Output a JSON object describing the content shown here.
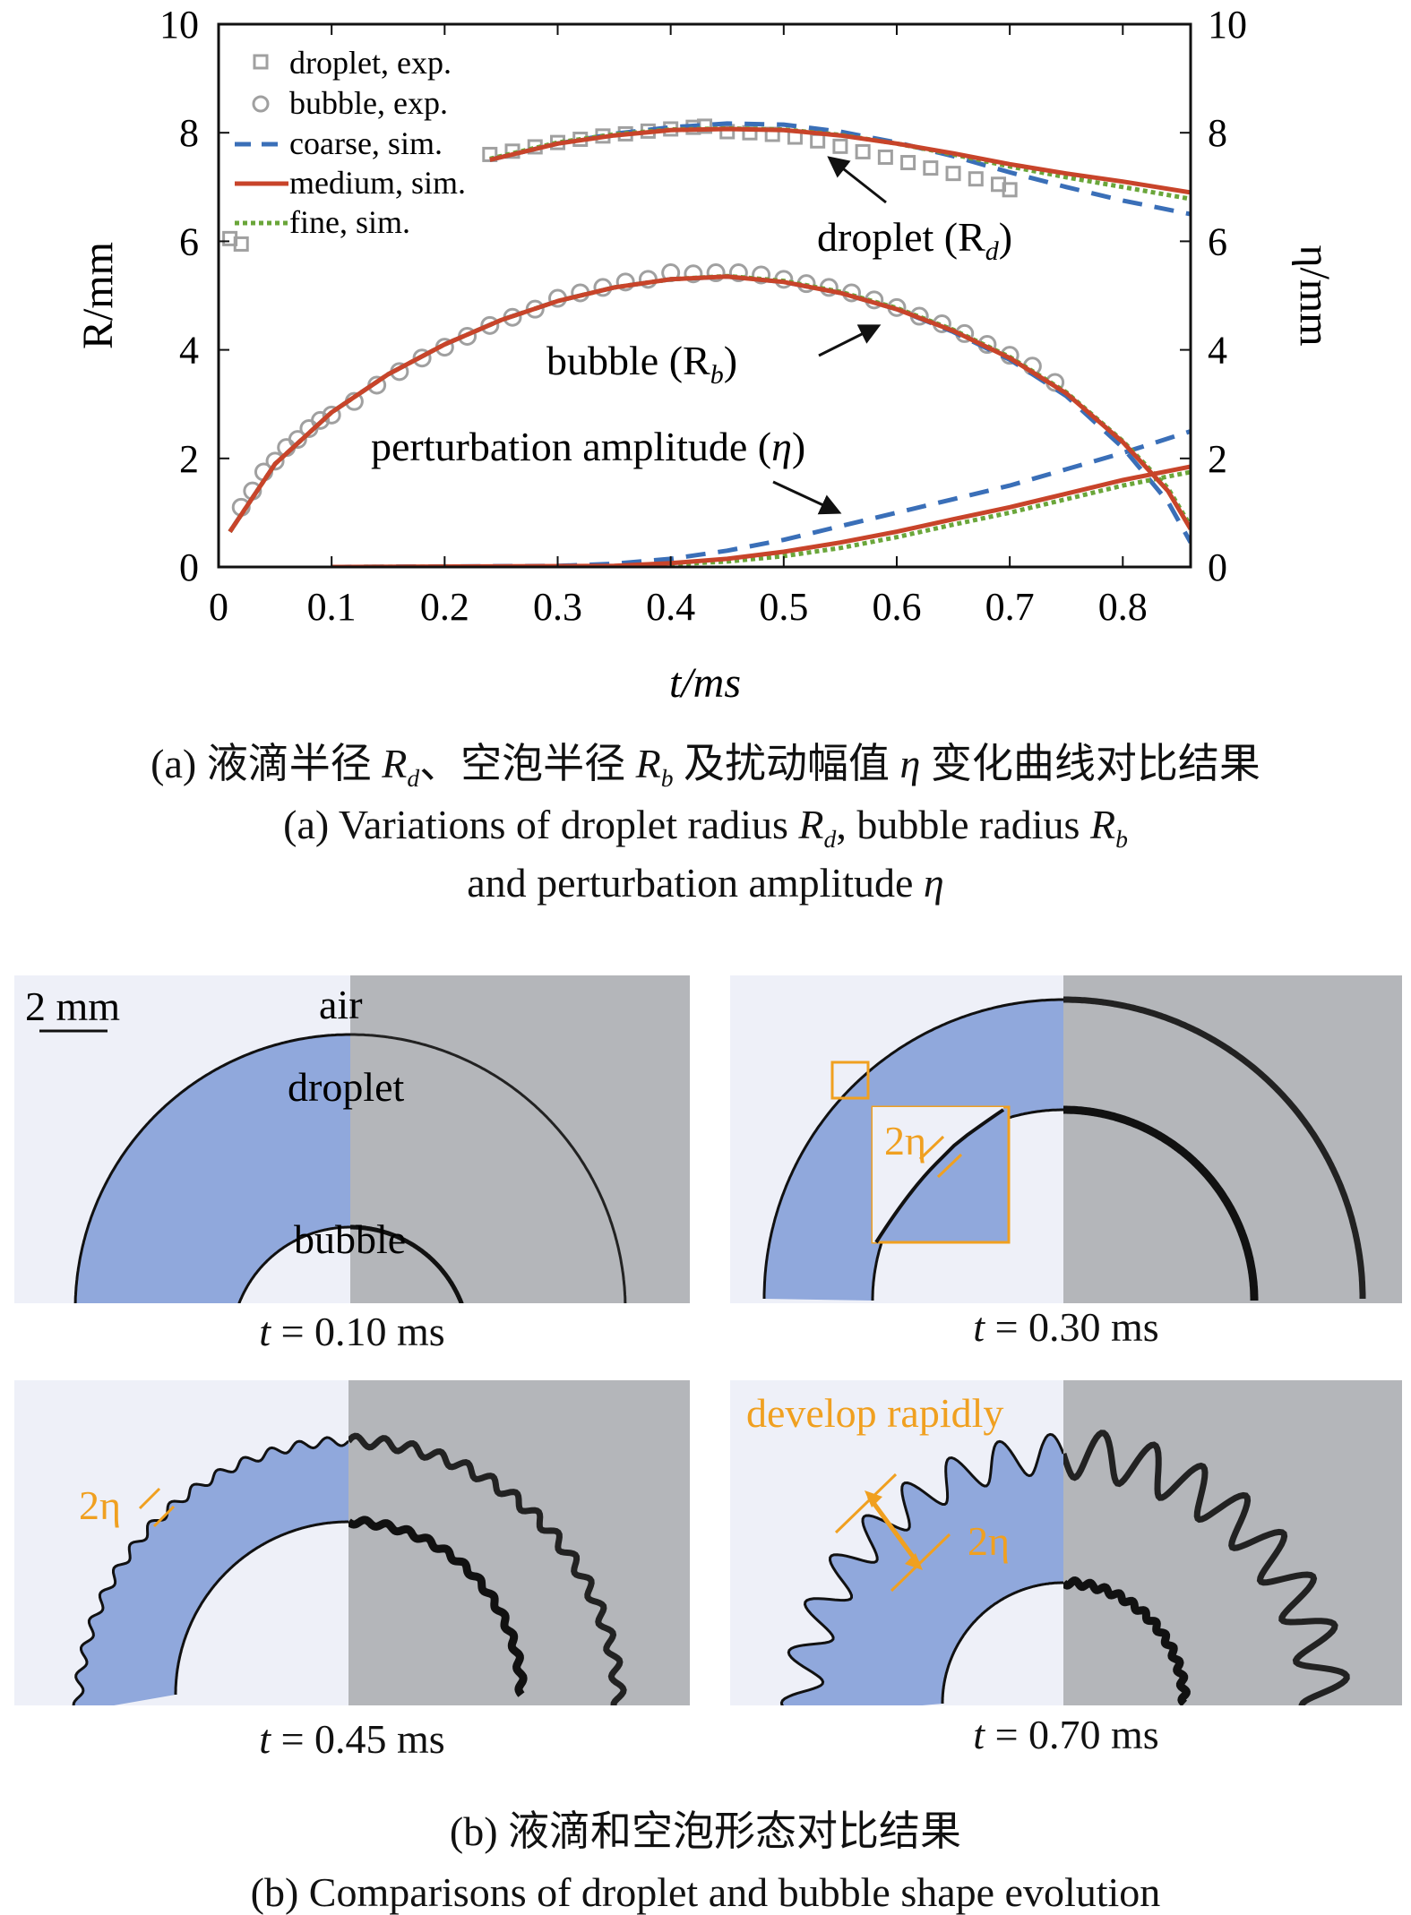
{
  "chart_data": {
    "type": "line",
    "xlabel": "t/ms",
    "ylabel": "R/mm",
    "y2label": "η/mm",
    "xlim": [
      0,
      0.86
    ],
    "ylim": [
      0,
      10
    ],
    "y2lim": [
      0,
      10
    ],
    "xticks": [
      "0",
      "0.1",
      "0.2",
      "0.3",
      "0.4",
      "0.5",
      "0.6",
      "0.7",
      "0.8"
    ],
    "yticks": [
      "0",
      "2",
      "4",
      "6",
      "8",
      "10"
    ],
    "grid": false,
    "legend_position": "top-left",
    "legend": [
      {
        "label": "droplet, exp.",
        "marker": "square",
        "color": "#a0a0a0"
      },
      {
        "label": "bubble, exp.",
        "marker": "circle",
        "color": "#a0a0a0"
      },
      {
        "label": "coarse, sim.",
        "line": "dashed",
        "color": "#3a6fb8"
      },
      {
        "label": "medium, sim.",
        "line": "solid",
        "color": "#c8442a"
      },
      {
        "label": "fine, sim.",
        "line": "dotted",
        "color": "#6aa63a"
      }
    ],
    "annotations": {
      "droplet": "droplet (R",
      "droplet_sub": "d",
      "bubble": "bubble (R",
      "bubble_sub": "b",
      "perturbation": "perturbation amplitude (",
      "eta": "η",
      "close": ")"
    },
    "series": [
      {
        "name": "droplet, exp.",
        "kind": "marker-square",
        "x": [
          0.01,
          0.02,
          0.24,
          0.26,
          0.28,
          0.3,
          0.32,
          0.34,
          0.36,
          0.38,
          0.4,
          0.42,
          0.43,
          0.45,
          0.47,
          0.49,
          0.51,
          0.53,
          0.55,
          0.57,
          0.59,
          0.61,
          0.63,
          0.65,
          0.67,
          0.69,
          0.7
        ],
        "y": [
          6.05,
          5.95,
          7.6,
          7.66,
          7.74,
          7.82,
          7.88,
          7.94,
          7.98,
          8.03,
          8.07,
          8.1,
          8.12,
          8.02,
          8.0,
          7.97,
          7.92,
          7.85,
          7.75,
          7.65,
          7.55,
          7.45,
          7.35,
          7.25,
          7.15,
          7.05,
          6.95
        ]
      },
      {
        "name": "bubble, exp.",
        "kind": "marker-circle",
        "x": [
          0.02,
          0.03,
          0.04,
          0.05,
          0.06,
          0.07,
          0.08,
          0.09,
          0.1,
          0.12,
          0.14,
          0.16,
          0.18,
          0.2,
          0.22,
          0.24,
          0.26,
          0.28,
          0.3,
          0.32,
          0.34,
          0.36,
          0.38,
          0.4,
          0.42,
          0.44,
          0.46,
          0.48,
          0.5,
          0.52,
          0.54,
          0.56,
          0.58,
          0.6,
          0.62,
          0.64,
          0.66,
          0.68,
          0.7,
          0.72,
          0.74
        ],
        "y": [
          1.1,
          1.4,
          1.75,
          1.95,
          2.2,
          2.35,
          2.55,
          2.7,
          2.8,
          3.05,
          3.35,
          3.6,
          3.85,
          4.05,
          4.25,
          4.45,
          4.6,
          4.75,
          4.95,
          5.05,
          5.15,
          5.25,
          5.3,
          5.42,
          5.4,
          5.42,
          5.42,
          5.38,
          5.3,
          5.22,
          5.15,
          5.05,
          4.92,
          4.78,
          4.62,
          4.48,
          4.3,
          4.1,
          3.9,
          3.7,
          3.4
        ]
      },
      {
        "name": "coarse, sim.",
        "group": "droplet",
        "x": [
          0.24,
          0.3,
          0.35,
          0.4,
          0.45,
          0.5,
          0.55,
          0.6,
          0.65,
          0.7,
          0.75,
          0.8,
          0.86
        ],
        "y": [
          7.5,
          7.8,
          7.98,
          8.1,
          8.17,
          8.15,
          8.02,
          7.82,
          7.57,
          7.27,
          7.0,
          6.75,
          6.5
        ]
      },
      {
        "name": "medium, sim.",
        "group": "droplet",
        "x": [
          0.24,
          0.3,
          0.35,
          0.4,
          0.45,
          0.5,
          0.55,
          0.6,
          0.65,
          0.7,
          0.75,
          0.8,
          0.86
        ],
        "y": [
          7.5,
          7.8,
          7.95,
          8.05,
          8.07,
          8.05,
          7.95,
          7.8,
          7.62,
          7.42,
          7.25,
          7.1,
          6.9
        ]
      },
      {
        "name": "fine, sim.",
        "group": "droplet",
        "x": [
          0.24,
          0.3,
          0.35,
          0.4,
          0.45,
          0.5,
          0.55,
          0.6,
          0.65,
          0.7,
          0.75,
          0.8,
          0.86
        ],
        "y": [
          7.52,
          7.82,
          7.97,
          8.06,
          8.08,
          8.06,
          7.96,
          7.8,
          7.6,
          7.38,
          7.18,
          7.0,
          6.78
        ]
      },
      {
        "name": "coarse, sim.",
        "group": "bubble",
        "x": [
          0.01,
          0.05,
          0.1,
          0.15,
          0.2,
          0.25,
          0.3,
          0.35,
          0.4,
          0.45,
          0.5,
          0.55,
          0.6,
          0.65,
          0.7,
          0.75,
          0.8,
          0.84,
          0.86
        ],
        "y": [
          0.65,
          1.9,
          2.85,
          3.55,
          4.1,
          4.55,
          4.9,
          5.15,
          5.3,
          5.35,
          5.25,
          5.05,
          4.75,
          4.33,
          3.82,
          3.15,
          2.2,
          1.2,
          0.45
        ]
      },
      {
        "name": "medium, sim.",
        "group": "bubble",
        "x": [
          0.01,
          0.05,
          0.1,
          0.15,
          0.2,
          0.25,
          0.3,
          0.35,
          0.4,
          0.45,
          0.5,
          0.55,
          0.6,
          0.65,
          0.7,
          0.75,
          0.8,
          0.84,
          0.86
        ],
        "y": [
          0.65,
          1.9,
          2.85,
          3.55,
          4.1,
          4.55,
          4.9,
          5.15,
          5.3,
          5.35,
          5.25,
          5.05,
          4.75,
          4.35,
          3.85,
          3.2,
          2.3,
          1.4,
          0.7
        ]
      },
      {
        "name": "fine, sim.",
        "group": "bubble",
        "x": [
          0.01,
          0.05,
          0.1,
          0.15,
          0.2,
          0.25,
          0.3,
          0.35,
          0.4,
          0.45,
          0.5,
          0.55,
          0.6,
          0.65,
          0.7,
          0.75,
          0.8,
          0.84,
          0.86
        ],
        "y": [
          0.65,
          1.9,
          2.85,
          3.55,
          4.1,
          4.55,
          4.9,
          5.15,
          5.3,
          5.36,
          5.27,
          5.07,
          4.77,
          4.37,
          3.87,
          3.22,
          2.32,
          1.45,
          0.75
        ]
      },
      {
        "name": "coarse, sim.",
        "group": "eta",
        "x": [
          0.1,
          0.3,
          0.35,
          0.4,
          0.45,
          0.5,
          0.55,
          0.6,
          0.65,
          0.7,
          0.75,
          0.8,
          0.86
        ],
        "y": [
          0.0,
          0.02,
          0.06,
          0.15,
          0.3,
          0.5,
          0.75,
          1.0,
          1.25,
          1.5,
          1.8,
          2.1,
          2.5
        ]
      },
      {
        "name": "medium, sim.",
        "group": "eta",
        "x": [
          0.1,
          0.35,
          0.4,
          0.45,
          0.5,
          0.55,
          0.6,
          0.65,
          0.7,
          0.75,
          0.8,
          0.86
        ],
        "y": [
          0.0,
          0.02,
          0.07,
          0.15,
          0.28,
          0.45,
          0.65,
          0.88,
          1.1,
          1.35,
          1.6,
          1.85
        ]
      },
      {
        "name": "fine, sim.",
        "group": "eta",
        "x": [
          0.1,
          0.35,
          0.4,
          0.45,
          0.5,
          0.55,
          0.6,
          0.65,
          0.7,
          0.75,
          0.8,
          0.86
        ],
        "y": [
          0.0,
          0.01,
          0.05,
          0.1,
          0.2,
          0.35,
          0.55,
          0.78,
          1.0,
          1.25,
          1.5,
          1.75
        ]
      }
    ]
  },
  "caption_a": {
    "cn_1": "(a) 液滴半径 ",
    "cn_rd": "R",
    "cn_rd_sub": "d",
    "cn_2": "、空泡半径 ",
    "cn_rb": "R",
    "cn_rb_sub": "b",
    "cn_3": " 及扰动幅值 ",
    "cn_eta": "η",
    "cn_4": " 变化曲线对比结果",
    "en_1": "(a) Variations of droplet radius ",
    "en_rd": "R",
    "en_rd_sub": "d",
    "en_2": ", bubble radius ",
    "en_rb": "R",
    "en_rb_sub": "b",
    "en_3": "and perturbation amplitude ",
    "en_eta": "η"
  },
  "panels": [
    {
      "time": "t",
      "time_value": " = 0.10 ms",
      "labels": {
        "scale": "2 mm",
        "air": "air",
        "droplet": "droplet",
        "bubble": "bubble"
      }
    },
    {
      "time": "t",
      "time_value": " = 0.30 ms",
      "labels": {
        "amp": "2η"
      }
    },
    {
      "time": "t",
      "time_value": " = 0.45 ms",
      "labels": {
        "amp": "2η"
      }
    },
    {
      "time": "t",
      "time_value": " = 0.70 ms",
      "labels": {
        "develop": "develop rapidly",
        "amp": "2η"
      }
    }
  ],
  "annotation_color": "#f0a020",
  "droplet_color": "#90a8dc",
  "caption_b": {
    "cn": "(b) 液滴和空泡形态对比结果",
    "en": "(b) Comparisons of droplet and bubble shape evolution"
  }
}
